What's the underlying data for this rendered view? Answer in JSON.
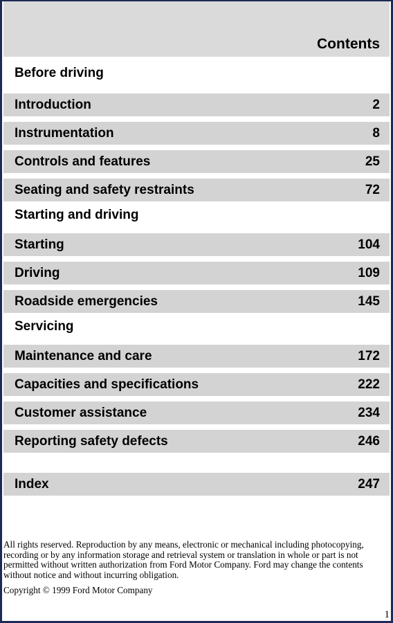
{
  "header": {
    "title": "Contents"
  },
  "sections": [
    {
      "title": "Before driving",
      "entries": [
        {
          "label": "Introduction",
          "page": 2
        },
        {
          "label": "Instrumentation",
          "page": 8
        },
        {
          "label": "Controls and features",
          "page": 25
        },
        {
          "label": "Seating and safety restraints",
          "page": 72
        }
      ]
    },
    {
      "title": "Starting and driving",
      "entries": [
        {
          "label": "Starting",
          "page": 104
        },
        {
          "label": "Driving",
          "page": 109
        },
        {
          "label": "Roadside emergencies",
          "page": 145
        }
      ]
    },
    {
      "title": "Servicing",
      "entries": [
        {
          "label": "Maintenance and care",
          "page": 172
        },
        {
          "label": "Capacities and specifications",
          "page": 222
        },
        {
          "label": "Customer assistance",
          "page": 234
        },
        {
          "label": "Reporting safety defects",
          "page": 246
        }
      ]
    }
  ],
  "index": {
    "label": "Index",
    "page": 247
  },
  "footer": {
    "notice": "All rights reserved. Reproduction by any means, electronic or mechanical including photocopying, recording or by any information storage and retrieval system or translation in whole or part is not permitted without written authorization from Ford Motor Company. Ford may change the contents without notice and without incurring obligation.",
    "copyright": "Copyright © 1999 Ford Motor Company"
  },
  "page_number": 1
}
